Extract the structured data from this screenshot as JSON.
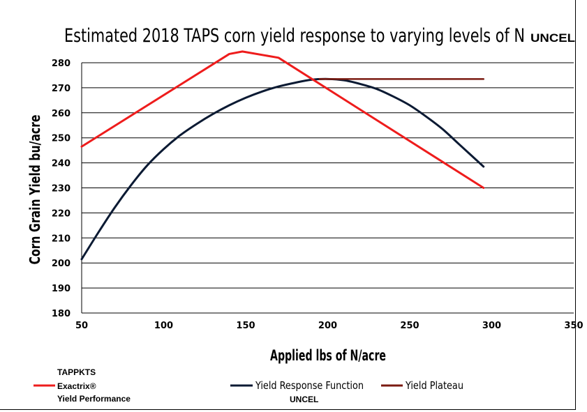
{
  "chart_data": {
    "type": "line",
    "title": "Estimated 2018 TAPS corn yield response to varying levels of N",
    "title_suffix": "UNCEL",
    "xlabel": "Applied lbs of N/acre",
    "ylabel": "Corn Grain Yield bu/acre",
    "xlim": [
      50,
      350
    ],
    "ylim": [
      180,
      280
    ],
    "x_ticks": [
      50,
      100,
      150,
      200,
      250,
      300,
      350
    ],
    "y_ticks": [
      180,
      190,
      200,
      210,
      220,
      230,
      240,
      250,
      260,
      270,
      280
    ],
    "grid": "horizontal",
    "legend_position": "bottom",
    "series": [
      {
        "name": "Yield Response Function",
        "legend_subtitle": "UNCEL",
        "color": "#0b1a33",
        "x": [
          50,
          60,
          70,
          80,
          90,
          100,
          110,
          120,
          130,
          140,
          150,
          160,
          170,
          180,
          190,
          200,
          210,
          220,
          230,
          240,
          250,
          260,
          270,
          280,
          295
        ],
        "y": [
          201.5,
          212,
          222,
          231,
          239,
          245.5,
          251,
          255.5,
          259.5,
          263,
          266,
          268.5,
          270.5,
          272,
          273.2,
          273.5,
          273,
          271.5,
          269.5,
          266.5,
          263,
          258.5,
          253.5,
          247.5,
          238.5
        ]
      },
      {
        "name": "Yield Plateau",
        "color": "#7a1a10",
        "x": [
          195,
          295
        ],
        "y": [
          273.5,
          273.5
        ]
      },
      {
        "name_lines": [
          "TAPPKTS",
          "Exactrix®",
          "Yield Performance"
        ],
        "color": "#ee1c1c",
        "x": [
          50,
          140,
          148,
          170,
          295
        ],
        "y": [
          246.5,
          283.5,
          284.5,
          282,
          230
        ]
      }
    ]
  }
}
